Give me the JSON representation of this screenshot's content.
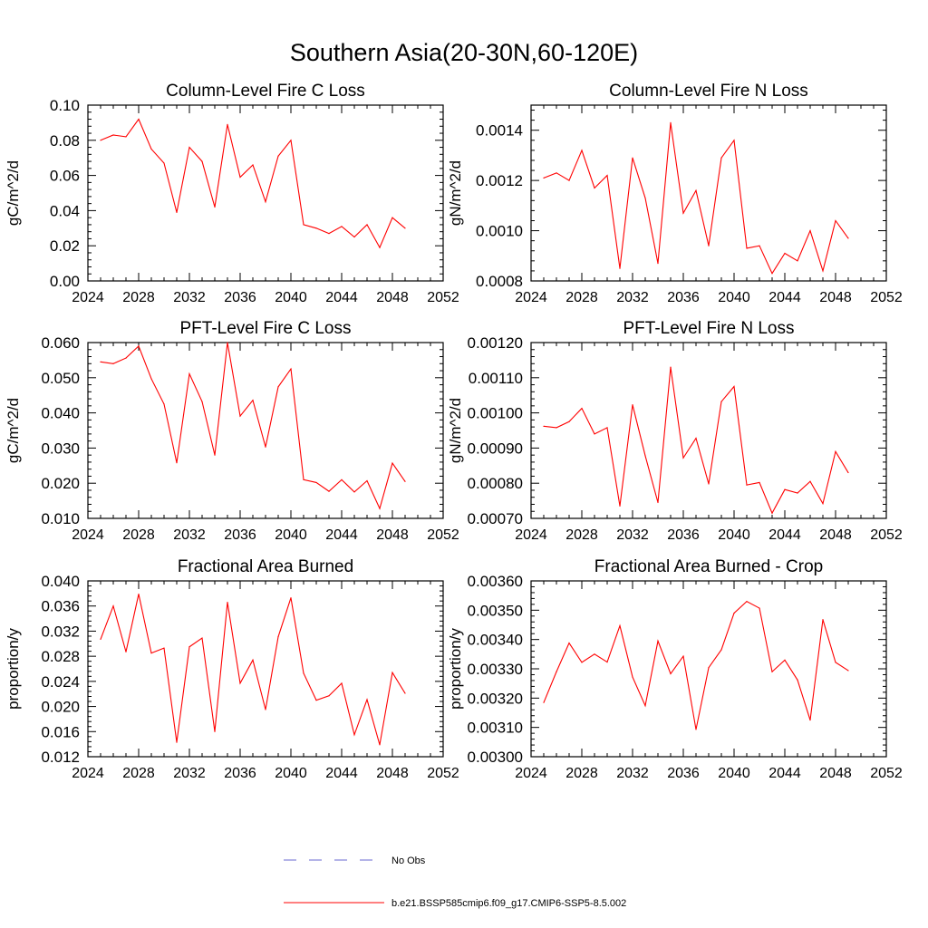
{
  "figure": {
    "title": "Southern Asia(20-30N,60-120E)",
    "line_color": "#ff0000",
    "obs_color": "#6a6ad0"
  },
  "legend": {
    "entries": [
      {
        "label": "No Obs",
        "style": "dashed",
        "color": "#6a6ad0"
      },
      {
        "label": "b.e21.BSSP585cmip6.f09_g17.CMIP6-SSP5-8.5.002",
        "style": "solid",
        "color": "#ff0000"
      }
    ]
  },
  "chart_data": [
    {
      "type": "line",
      "title": "Column-Level Fire C Loss",
      "ylabel": "gC/m^2/d",
      "xlim": [
        2024,
        2052
      ],
      "ylim": [
        0,
        0.1
      ],
      "xticks": [
        "2024",
        "2028",
        "2032",
        "2036",
        "2040",
        "2044",
        "2048",
        "2052"
      ],
      "yticks": [
        "0.00",
        "0.02",
        "0.04",
        "0.06",
        "0.08",
        "0.10"
      ],
      "x": [
        2025,
        2026,
        2027,
        2028,
        2029,
        2030,
        2031,
        2032,
        2033,
        2034,
        2035,
        2036,
        2037,
        2038,
        2039,
        2040,
        2041,
        2042,
        2043,
        2044,
        2045,
        2046,
        2047,
        2048,
        2049
      ],
      "series": [
        {
          "name": "b.e21.BSSP585cmip6.f09_g17.CMIP6-SSP5-8.5.002",
          "values": [
            0.08,
            0.083,
            0.082,
            0.092,
            0.075,
            0.067,
            0.039,
            0.076,
            0.068,
            0.042,
            0.089,
            0.059,
            0.066,
            0.045,
            0.071,
            0.08,
            0.032,
            0.03,
            0.027,
            0.031,
            0.025,
            0.032,
            0.019,
            0.036,
            0.03
          ]
        }
      ]
    },
    {
      "type": "line",
      "title": "Column-Level Fire N Loss",
      "ylabel": "gN/m^2/d",
      "xlim": [
        2024,
        2052
      ],
      "ylim": [
        0.0008,
        0.0015
      ],
      "xticks": [
        "2024",
        "2028",
        "2032",
        "2036",
        "2040",
        "2044",
        "2048",
        "2052"
      ],
      "yticks": [
        "0.0008",
        "0.0010",
        "0.0012",
        "0.0014"
      ],
      "x": [
        2025,
        2026,
        2027,
        2028,
        2029,
        2030,
        2031,
        2032,
        2033,
        2034,
        2035,
        2036,
        2037,
        2038,
        2039,
        2040,
        2041,
        2042,
        2043,
        2044,
        2045,
        2046,
        2047,
        2048,
        2049
      ],
      "series": [
        {
          "name": "b.e21.BSSP585cmip6.f09_g17.CMIP6-SSP5-8.5.002",
          "values": [
            0.00121,
            0.00123,
            0.0012,
            0.00132,
            0.00117,
            0.00122,
            0.00085,
            0.00129,
            0.00113,
            0.00087,
            0.00143,
            0.00107,
            0.00116,
            0.00094,
            0.00129,
            0.00136,
            0.00093,
            0.00094,
            0.00083,
            0.00091,
            0.00088,
            0.001,
            0.00084,
            0.00104,
            0.00097
          ]
        }
      ]
    },
    {
      "type": "line",
      "title": "PFT-Level Fire C Loss",
      "ylabel": "gC/m^2/d",
      "xlim": [
        2024,
        2052
      ],
      "ylim": [
        0.01,
        0.06
      ],
      "xticks": [
        "2024",
        "2028",
        "2032",
        "2036",
        "2040",
        "2044",
        "2048",
        "2052"
      ],
      "yticks": [
        "0.010",
        "0.020",
        "0.030",
        "0.040",
        "0.050",
        "0.060"
      ],
      "x": [
        2025,
        2026,
        2027,
        2028,
        2029,
        2030,
        2031,
        2032,
        2033,
        2034,
        2035,
        2036,
        2037,
        2038,
        2039,
        2040,
        2041,
        2042,
        2043,
        2044,
        2045,
        2046,
        2047,
        2048,
        2049
      ],
      "series": [
        {
          "name": "b.e21.BSSP585cmip6.f09_g17.CMIP6-SSP5-8.5.002",
          "values": [
            0.0545,
            0.054,
            0.0556,
            0.059,
            0.0497,
            0.0425,
            0.0258,
            0.0511,
            0.0432,
            0.028,
            0.06,
            0.0391,
            0.0436,
            0.0303,
            0.0474,
            0.0525,
            0.021,
            0.0202,
            0.0177,
            0.021,
            0.0175,
            0.0207,
            0.0128,
            0.0257,
            0.0205
          ]
        }
      ]
    },
    {
      "type": "line",
      "title": "PFT-Level Fire N Loss",
      "ylabel": "gN/m^2/d",
      "xlim": [
        2024,
        2052
      ],
      "ylim": [
        0.0007,
        0.0012
      ],
      "xticks": [
        "2024",
        "2028",
        "2032",
        "2036",
        "2040",
        "2044",
        "2048",
        "2052"
      ],
      "yticks": [
        "0.00070",
        "0.00080",
        "0.00090",
        "0.00100",
        "0.00110",
        "0.00120"
      ],
      "x": [
        2025,
        2026,
        2027,
        2028,
        2029,
        2030,
        2031,
        2032,
        2033,
        2034,
        2035,
        2036,
        2037,
        2038,
        2039,
        2040,
        2041,
        2042,
        2043,
        2044,
        2045,
        2046,
        2047,
        2048,
        2049
      ],
      "series": [
        {
          "name": "b.e21.BSSP585cmip6.f09_g17.CMIP6-SSP5-8.5.002",
          "values": [
            0.000962,
            0.000958,
            0.000975,
            0.001013,
            0.00094,
            0.000958,
            0.000735,
            0.001023,
            0.000878,
            0.000745,
            0.00113,
            0.000872,
            0.000928,
            0.000798,
            0.001032,
            0.001075,
            0.000795,
            0.000802,
            0.000715,
            0.000782,
            0.000772,
            0.000805,
            0.000742,
            0.00089,
            0.00083
          ]
        }
      ]
    },
    {
      "type": "line",
      "title": "Fractional Area Burned",
      "ylabel": "proportion/y",
      "xlim": [
        2024,
        2052
      ],
      "ylim": [
        0.012,
        0.04
      ],
      "xticks": [
        "2024",
        "2028",
        "2032",
        "2036",
        "2040",
        "2044",
        "2048",
        "2052"
      ],
      "yticks": [
        "0.012",
        "0.016",
        "0.020",
        "0.024",
        "0.028",
        "0.032",
        "0.036",
        "0.040"
      ],
      "x": [
        2025,
        2026,
        2027,
        2028,
        2029,
        2030,
        2031,
        2032,
        2033,
        2034,
        2035,
        2036,
        2037,
        2038,
        2039,
        2040,
        2041,
        2042,
        2043,
        2044,
        2045,
        2046,
        2047,
        2048,
        2049
      ],
      "series": [
        {
          "name": "b.e21.BSSP585cmip6.f09_g17.CMIP6-SSP5-8.5.002",
          "values": [
            0.0307,
            0.036,
            0.0287,
            0.0379,
            0.0285,
            0.0293,
            0.0143,
            0.0295,
            0.0309,
            0.016,
            0.0366,
            0.0237,
            0.0274,
            0.0195,
            0.0311,
            0.0373,
            0.0253,
            0.021,
            0.0217,
            0.0237,
            0.0155,
            0.0211,
            0.0139,
            0.0254,
            0.0221
          ]
        }
      ]
    },
    {
      "type": "line",
      "title": "Fractional Area Burned - Crop",
      "ylabel": "proportion/y",
      "xlim": [
        2024,
        2052
      ],
      "ylim": [
        0.003,
        0.0036
      ],
      "xticks": [
        "2024",
        "2028",
        "2032",
        "2036",
        "2040",
        "2044",
        "2048",
        "2052"
      ],
      "yticks": [
        "0.00300",
        "0.00310",
        "0.00320",
        "0.00330",
        "0.00340",
        "0.00350",
        "0.00360"
      ],
      "x": [
        2025,
        2026,
        2027,
        2028,
        2029,
        2030,
        2031,
        2032,
        2033,
        2034,
        2035,
        2036,
        2037,
        2038,
        2039,
        2040,
        2041,
        2042,
        2043,
        2044,
        2045,
        2046,
        2047,
        2048,
        2049
      ],
      "series": [
        {
          "name": "b.e21.BSSP585cmip6.f09_g17.CMIP6-SSP5-8.5.002",
          "values": [
            0.003185,
            0.00329,
            0.003388,
            0.003322,
            0.00335,
            0.003323,
            0.003447,
            0.003272,
            0.003174,
            0.003395,
            0.003283,
            0.003343,
            0.003093,
            0.003304,
            0.003365,
            0.00349,
            0.00353,
            0.003507,
            0.00329,
            0.00333,
            0.003262,
            0.003125,
            0.003468,
            0.003322,
            0.003294
          ]
        }
      ]
    }
  ]
}
